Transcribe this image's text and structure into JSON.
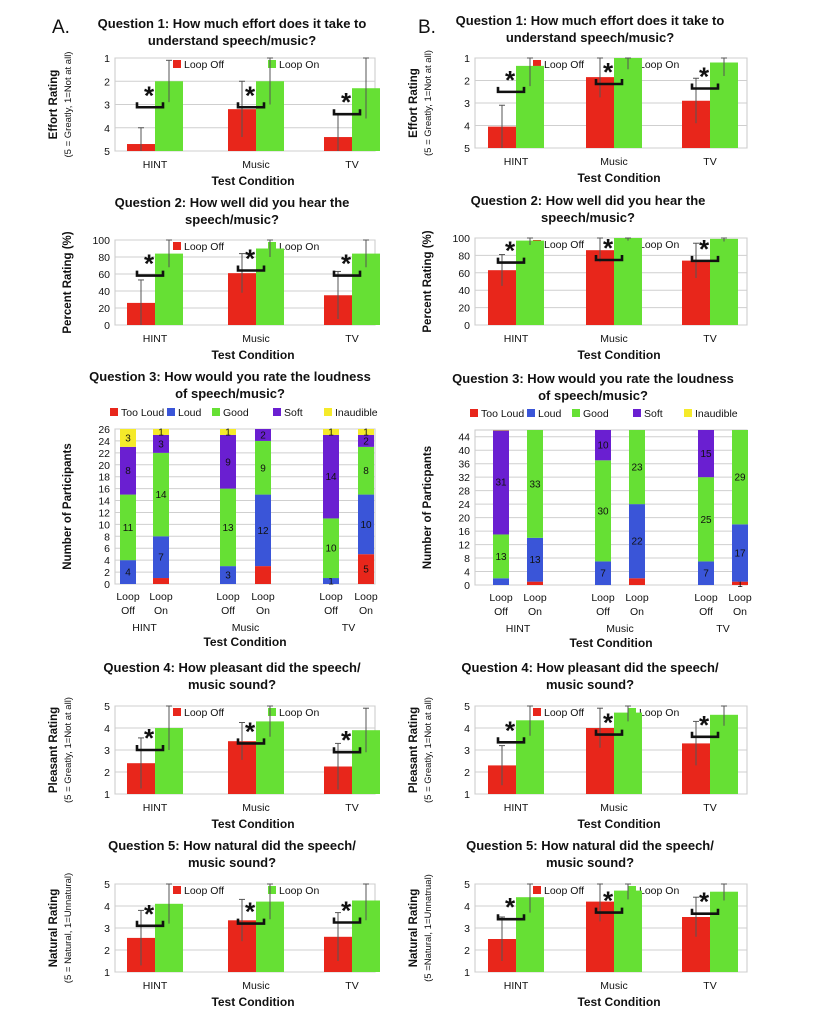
{
  "panel_labels": {
    "A": "A.",
    "B": "B."
  },
  "series_names": [
    "Loop Off",
    "Loop On"
  ],
  "stack_categories": [
    "Too Loud",
    "Loud",
    "Good",
    "Soft",
    "Inaudible"
  ],
  "group_labels": [
    "HINT",
    "Music",
    "TV"
  ],
  "loop_line1": "Loop",
  "loop_off_line2": "Off",
  "loop_on_line2": "On",
  "colors": {
    "loop_off": "#e8261b",
    "loop_on": "#66e034",
    "too_loud": "#e8261b",
    "loud": "#3a55d8",
    "good": "#66e034",
    "soft": "#6a1fd1",
    "inaudible": "#f5ea2a"
  },
  "chart_data": [
    {
      "id": "A1",
      "panel": "A",
      "type": "bar",
      "title": [
        "Question 1: How much effort does it take to",
        "understand speech/music?"
      ],
      "xlabel": "Test Condition",
      "ylabel": "Effort Rating",
      "ysub": "(5 = Greatly, 1=Not at all)",
      "categories": [
        "HINT",
        "Music",
        "TV"
      ],
      "ylim": [
        5,
        1
      ],
      "reversed": true,
      "ticks": [
        5,
        4,
        3,
        2,
        1
      ],
      "series": [
        {
          "name": "Loop Off",
          "values": [
            4.7,
            3.2,
            4.4
          ],
          "error": [
            0.7,
            1.2,
            1.0
          ]
        },
        {
          "name": "Loop On",
          "values": [
            2.0,
            2.0,
            2.3
          ],
          "error": [
            0.9,
            1.0,
            1.3
          ]
        }
      ],
      "significance": [
        "*",
        "*",
        "*"
      ]
    },
    {
      "id": "A2",
      "panel": "A",
      "type": "bar",
      "title": [
        "Question 2: How well did you hear the",
        "speech/music?"
      ],
      "xlabel": "Test Condition",
      "ylabel": "Percent Rating (%)",
      "categories": [
        "HINT",
        "Music",
        "TV"
      ],
      "ylim": [
        0,
        100
      ],
      "ticks": [
        0,
        20,
        40,
        60,
        80,
        100
      ],
      "series": [
        {
          "name": "Loop Off",
          "values": [
            26,
            61,
            35
          ],
          "error": [
            27,
            23,
            28
          ]
        },
        {
          "name": "Loop On",
          "values": [
            84,
            90,
            84
          ],
          "error": [
            16,
            10,
            16
          ]
        }
      ],
      "significance": [
        "*",
        "*",
        "*"
      ]
    },
    {
      "id": "A3",
      "panel": "A",
      "type": "bar",
      "stacked": true,
      "title": [
        "Question 3: How would you rate the loudness",
        "of speech/music?"
      ],
      "xlabel": "Test Condition",
      "ylabel": "Number of Participants",
      "ylim": [
        0,
        26
      ],
      "ticks": [
        0,
        2,
        4,
        6,
        8,
        10,
        12,
        14,
        16,
        18,
        20,
        22,
        24,
        26
      ],
      "stack_categories": [
        "Too Loud",
        "Loud",
        "Good",
        "Soft",
        "Inaudible"
      ],
      "bars": [
        {
          "group": "HINT",
          "condition": "Loop Off",
          "values": [
            0,
            4,
            11,
            8,
            3
          ],
          "labels": [
            "",
            "4",
            "11",
            "8",
            "3"
          ]
        },
        {
          "group": "HINT",
          "condition": "Loop On",
          "values": [
            1,
            7,
            14,
            3,
            1
          ],
          "labels": [
            "",
            "7",
            "14",
            "3",
            "1"
          ]
        },
        {
          "group": "Music",
          "condition": "Loop Off",
          "values": [
            0,
            3,
            13,
            9,
            1
          ],
          "labels": [
            "",
            "3",
            "13",
            "9",
            "1"
          ]
        },
        {
          "group": "Music",
          "condition": "Loop On",
          "values": [
            3,
            12,
            9,
            2,
            0
          ],
          "labels": [
            "",
            "12",
            "9",
            "2",
            ""
          ]
        },
        {
          "group": "TV",
          "condition": "Loop Off",
          "values": [
            0,
            1,
            10,
            14,
            1
          ],
          "labels": [
            "",
            "1",
            "10",
            "14",
            "1"
          ]
        },
        {
          "group": "TV",
          "condition": "Loop On",
          "values": [
            5,
            10,
            8,
            2,
            1
          ],
          "labels": [
            "5",
            "10",
            "8",
            "2",
            "1"
          ]
        }
      ]
    },
    {
      "id": "A4",
      "panel": "A",
      "type": "bar",
      "title": [
        "Question 4: How pleasant did the speech/",
        "music sound?"
      ],
      "xlabel": "Test Condition",
      "ylabel": "Pleasant Rating",
      "ysub": "(5 = Greatly, 1=Not at all)",
      "categories": [
        "HINT",
        "Music",
        "TV"
      ],
      "ylim": [
        1,
        5
      ],
      "ticks": [
        1,
        2,
        3,
        4,
        5
      ],
      "series": [
        {
          "name": "Loop Off",
          "values": [
            2.4,
            3.4,
            2.25
          ],
          "error": [
            1.15,
            0.85,
            1.05
          ]
        },
        {
          "name": "Loop On",
          "values": [
            4.0,
            4.3,
            3.9
          ],
          "error": [
            1.0,
            0.7,
            1.0
          ]
        }
      ],
      "significance": [
        "*",
        "*",
        "*"
      ]
    },
    {
      "id": "A5",
      "panel": "A",
      "type": "bar",
      "title": [
        "Question 5: How natural did the speech/",
        "music sound?"
      ],
      "xlabel": "Test Condition",
      "ylabel": "Natural Rating",
      "ysub": "(5 = Natural, 1=Unnatural)",
      "categories": [
        "HINT",
        "Music",
        "TV"
      ],
      "ylim": [
        1,
        5
      ],
      "ticks": [
        1,
        2,
        3,
        4,
        5
      ],
      "series": [
        {
          "name": "Loop Off",
          "values": [
            2.55,
            3.35,
            2.6
          ],
          "error": [
            1.25,
            0.95,
            1.1
          ]
        },
        {
          "name": "Loop On",
          "values": [
            4.1,
            4.2,
            4.25
          ],
          "error": [
            0.9,
            0.8,
            0.9
          ]
        }
      ],
      "significance": [
        "*",
        "*",
        "*"
      ]
    },
    {
      "id": "B1",
      "panel": "B",
      "type": "bar",
      "title": [
        "Question 1: How much effort does it take to",
        "understand speech/music?"
      ],
      "xlabel": "Test Condition",
      "ylabel": "Effort Rating",
      "ysub": "(5 = Greatly, 1=Not at all)",
      "categories": [
        "HINT",
        "Music",
        "TV"
      ],
      "ylim": [
        5,
        1
      ],
      "reversed": true,
      "ticks": [
        5,
        4,
        3,
        2,
        1
      ],
      "series": [
        {
          "name": "Loop Off",
          "values": [
            4.05,
            1.85,
            2.9
          ],
          "error": [
            0.95,
            0.9,
            1.0
          ]
        },
        {
          "name": "Loop On",
          "values": [
            1.35,
            1.0,
            1.2
          ],
          "error": [
            0.9,
            0.5,
            0.6
          ]
        }
      ],
      "significance": [
        "*",
        "*",
        "*"
      ]
    },
    {
      "id": "B2",
      "panel": "B",
      "type": "bar",
      "title": [
        "Question 2: How well did you hear the",
        "speech/music?"
      ],
      "xlabel": "Test Condition",
      "ylabel": "Percent Rating (%)",
      "categories": [
        "HINT",
        "Music",
        "TV"
      ],
      "ylim": [
        0,
        100
      ],
      "ticks": [
        0,
        20,
        40,
        60,
        80,
        100
      ],
      "series": [
        {
          "name": "Loop Off",
          "values": [
            63,
            86,
            74
          ],
          "error": [
            18,
            14,
            20
          ]
        },
        {
          "name": "Loop On",
          "values": [
            97,
            100,
            99
          ],
          "error": [
            5,
            3,
            3
          ]
        }
      ],
      "significance": [
        "*",
        "*",
        "*"
      ]
    },
    {
      "id": "B3",
      "panel": "B",
      "type": "bar",
      "stacked": true,
      "title": [
        "Question 3: How would you rate the loudness",
        "of speech/music?"
      ],
      "xlabel": "Test Condition",
      "ylabel": "Number of Particpants",
      "ylim": [
        0,
        46
      ],
      "ticks": [
        0,
        4,
        8,
        12,
        16,
        20,
        24,
        28,
        32,
        36,
        40,
        44
      ],
      "stack_categories": [
        "Too Loud",
        "Loud",
        "Good",
        "Soft",
        "Inaudible"
      ],
      "bars": [
        {
          "group": "HINT",
          "condition": "Loop Off",
          "values": [
            0,
            2,
            13,
            31,
            1
          ],
          "labels": [
            "",
            "",
            "13",
            "31",
            ""
          ]
        },
        {
          "group": "HINT",
          "condition": "Loop On",
          "values": [
            1,
            13,
            33,
            0,
            0
          ],
          "labels": [
            "",
            "13",
            "33",
            "",
            ""
          ]
        },
        {
          "group": "Music",
          "condition": "Loop Off",
          "values": [
            0,
            7,
            30,
            10,
            0
          ],
          "labels": [
            "",
            "7",
            "30",
            "10",
            ""
          ]
        },
        {
          "group": "Music",
          "condition": "Loop On",
          "values": [
            2,
            22,
            23,
            0,
            0
          ],
          "labels": [
            "",
            "22",
            "23",
            "",
            ""
          ]
        },
        {
          "group": "TV",
          "condition": "Loop Off",
          "values": [
            0,
            7,
            25,
            15,
            0
          ],
          "labels": [
            "",
            "7",
            "25",
            "15",
            ""
          ]
        },
        {
          "group": "TV",
          "condition": "Loop On",
          "values": [
            1,
            17,
            29,
            0,
            0
          ],
          "labels": [
            "1",
            "17",
            "29",
            "",
            ""
          ]
        }
      ]
    },
    {
      "id": "B4",
      "panel": "B",
      "type": "bar",
      "title": [
        "Question 4: How pleasant did the speech/",
        "music sound?"
      ],
      "xlabel": "Test Condition",
      "ylabel": "Pleasant Rating",
      "ysub": "(5 = Greatly, 1=Not at all)",
      "categories": [
        "HINT",
        "Music",
        "TV"
      ],
      "ylim": [
        1,
        5
      ],
      "ticks": [
        1,
        2,
        3,
        4,
        5
      ],
      "series": [
        {
          "name": "Loop Off",
          "values": [
            2.3,
            4.0,
            3.3
          ],
          "error": [
            0.9,
            0.9,
            1.0
          ]
        },
        {
          "name": "Loop On",
          "values": [
            4.35,
            4.7,
            4.6
          ],
          "error": [
            0.7,
            0.4,
            0.5
          ]
        }
      ],
      "significance": [
        "*",
        "*",
        "*"
      ]
    },
    {
      "id": "B5",
      "panel": "B",
      "type": "bar",
      "title": [
        "Question 5: How natural did the speech/",
        "music sound?"
      ],
      "xlabel": "Test Condition",
      "ylabel": "Natural Rating",
      "ysub": "(5 =Natural, 1=Unnatrual)",
      "categories": [
        "HINT",
        "Music",
        "TV"
      ],
      "ylim": [
        1,
        5
      ],
      "ticks": [
        1,
        2,
        3,
        4,
        5
      ],
      "series": [
        {
          "name": "Loop Off",
          "values": [
            2.5,
            4.2,
            3.5
          ],
          "error": [
            1.0,
            0.9,
            0.9
          ]
        },
        {
          "name": "Loop On",
          "values": [
            4.4,
            4.7,
            4.65
          ],
          "error": [
            0.7,
            0.4,
            0.4
          ]
        }
      ],
      "significance": [
        "*",
        "*",
        "*"
      ]
    }
  ]
}
